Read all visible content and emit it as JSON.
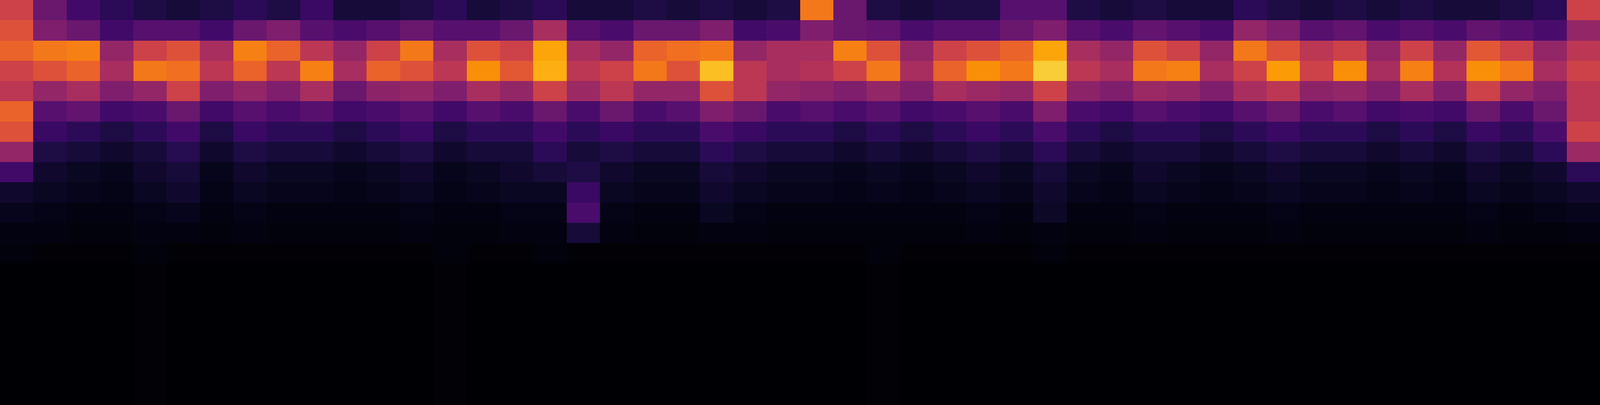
{
  "chart_data": {
    "type": "heatmap",
    "color": "inferno",
    "tick_labels": false,
    "zlim": [
      0,
      100
    ],
    "z": [
      [
        55,
        30,
        20,
        15,
        12,
        10,
        12,
        15,
        12,
        18,
        10,
        10,
        12,
        15,
        10,
        12,
        15,
        10,
        10,
        12,
        10,
        12,
        10,
        12,
        70,
        30,
        12,
        10,
        12,
        12,
        25,
        25,
        12,
        10,
        12,
        10,
        10,
        15,
        12,
        10,
        12,
        10,
        12,
        10,
        10,
        12,
        15,
        55
      ],
      [
        60,
        35,
        30,
        20,
        25,
        25,
        20,
        30,
        35,
        25,
        22,
        25,
        30,
        25,
        25,
        30,
        45,
        25,
        22,
        30,
        30,
        35,
        20,
        22,
        35,
        30,
        28,
        22,
        25,
        25,
        30,
        35,
        25,
        22,
        28,
        25,
        22,
        40,
        35,
        25,
        28,
        22,
        25,
        22,
        28,
        25,
        22,
        40
      ],
      [
        65,
        70,
        72,
        40,
        55,
        60,
        45,
        72,
        65,
        50,
        40,
        55,
        70,
        45,
        60,
        55,
        80,
        45,
        40,
        65,
        68,
        70,
        40,
        45,
        45,
        72,
        60,
        40,
        55,
        60,
        65,
        80,
        45,
        40,
        60,
        55,
        40,
        70,
        60,
        50,
        55,
        40,
        55,
        40,
        62,
        55,
        40,
        50
      ],
      [
        55,
        60,
        65,
        45,
        70,
        68,
        50,
        65,
        50,
        72,
        45,
        65,
        60,
        50,
        75,
        62,
        82,
        50,
        55,
        70,
        60,
        85,
        50,
        45,
        48,
        55,
        70,
        45,
        65,
        75,
        70,
        88,
        50,
        45,
        70,
        72,
        45,
        55,
        78,
        55,
        75,
        45,
        72,
        48,
        75,
        70,
        45,
        55
      ],
      [
        50,
        40,
        45,
        35,
        40,
        55,
        35,
        40,
        35,
        45,
        30,
        38,
        40,
        35,
        45,
        40,
        55,
        42,
        50,
        40,
        40,
        60,
        50,
        40,
        38,
        35,
        40,
        35,
        45,
        42,
        40,
        55,
        38,
        35,
        42,
        40,
        35,
        45,
        50,
        38,
        40,
        35,
        45,
        35,
        55,
        40,
        35,
        50
      ],
      [
        65,
        25,
        28,
        20,
        22,
        30,
        20,
        25,
        22,
        25,
        20,
        22,
        25,
        20,
        25,
        22,
        30,
        22,
        30,
        22,
        25,
        35,
        30,
        22,
        25,
        22,
        25,
        20,
        22,
        25,
        22,
        35,
        22,
        20,
        25,
        22,
        20,
        25,
        30,
        22,
        25,
        20,
        22,
        20,
        30,
        22,
        30,
        50
      ],
      [
        60,
        18,
        15,
        12,
        15,
        20,
        12,
        18,
        15,
        15,
        12,
        15,
        18,
        12,
        15,
        15,
        20,
        15,
        18,
        15,
        15,
        22,
        18,
        15,
        15,
        12,
        15,
        12,
        15,
        18,
        15,
        22,
        15,
        12,
        15,
        15,
        12,
        15,
        18,
        15,
        15,
        12,
        15,
        12,
        18,
        15,
        22,
        55
      ],
      [
        40,
        12,
        10,
        8,
        10,
        14,
        8,
        12,
        10,
        10,
        8,
        10,
        12,
        8,
        10,
        10,
        15,
        10,
        12,
        10,
        10,
        15,
        12,
        10,
        10,
        8,
        10,
        8,
        10,
        12,
        10,
        15,
        10,
        8,
        10,
        10,
        8,
        10,
        12,
        10,
        10,
        8,
        10,
        8,
        12,
        10,
        15,
        42
      ],
      [
        20,
        8,
        6,
        5,
        8,
        10,
        5,
        8,
        6,
        6,
        5,
        6,
        8,
        5,
        6,
        8,
        10,
        12,
        8,
        6,
        6,
        10,
        8,
        6,
        6,
        5,
        6,
        5,
        6,
        8,
        6,
        10,
        6,
        5,
        8,
        6,
        5,
        6,
        8,
        6,
        6,
        5,
        6,
        5,
        8,
        6,
        8,
        15
      ],
      [
        8,
        6,
        5,
        4,
        6,
        8,
        4,
        6,
        5,
        5,
        4,
        5,
        6,
        4,
        5,
        6,
        6,
        18,
        6,
        5,
        5,
        8,
        6,
        5,
        5,
        4,
        5,
        4,
        5,
        6,
        5,
        8,
        5,
        4,
        6,
        5,
        4,
        5,
        6,
        5,
        5,
        4,
        5,
        4,
        6,
        5,
        6,
        8
      ],
      [
        5,
        4,
        3,
        3,
        4,
        5,
        3,
        4,
        3,
        3,
        3,
        3,
        4,
        3,
        3,
        4,
        4,
        22,
        4,
        3,
        3,
        6,
        4,
        3,
        3,
        3,
        3,
        3,
        3,
        4,
        3,
        7,
        3,
        3,
        4,
        3,
        3,
        3,
        4,
        3,
        3,
        3,
        3,
        3,
        4,
        3,
        4,
        5
      ],
      [
        3,
        3,
        2,
        2,
        3,
        3,
        2,
        3,
        2,
        2,
        2,
        2,
        3,
        2,
        2,
        3,
        3,
        10,
        3,
        2,
        2,
        3,
        3,
        2,
        2,
        2,
        2,
        2,
        2,
        3,
        2,
        3,
        2,
        2,
        3,
        2,
        2,
        2,
        3,
        2,
        2,
        2,
        2,
        2,
        3,
        2,
        2,
        3
      ],
      [
        2,
        1,
        1,
        1,
        2,
        1,
        1,
        1,
        1,
        1,
        1,
        1,
        1,
        2,
        1,
        1,
        2,
        1,
        1,
        1,
        1,
        1,
        1,
        1,
        1,
        1,
        2,
        1,
        1,
        1,
        1,
        2,
        1,
        1,
        1,
        1,
        1,
        1,
        1,
        1,
        1,
        1,
        1,
        1,
        1,
        1,
        1,
        1
      ],
      [
        0,
        0,
        0,
        0,
        1,
        0,
        0,
        0,
        0,
        0,
        0,
        0,
        0,
        1,
        0,
        0,
        0,
        0,
        0,
        0,
        0,
        0,
        0,
        0,
        0,
        0,
        1,
        0,
        0,
        0,
        0,
        0,
        0,
        0,
        0,
        0,
        0,
        0,
        0,
        0,
        0,
        0,
        0,
        0,
        0,
        0,
        0,
        0
      ],
      [
        0,
        0,
        0,
        0,
        1,
        0,
        0,
        0,
        0,
        0,
        0,
        0,
        0,
        1,
        0,
        0,
        0,
        0,
        0,
        0,
        0,
        0,
        0,
        0,
        0,
        0,
        1,
        0,
        0,
        0,
        0,
        0,
        0,
        0,
        0,
        0,
        0,
        0,
        0,
        0,
        0,
        0,
        0,
        0,
        0,
        0,
        0,
        0
      ],
      [
        0,
        0,
        0,
        0,
        1,
        0,
        0,
        0,
        0,
        0,
        0,
        0,
        0,
        1,
        0,
        0,
        0,
        0,
        0,
        0,
        0,
        0,
        0,
        0,
        0,
        0,
        1,
        0,
        0,
        0,
        0,
        0,
        0,
        0,
        0,
        0,
        0,
        0,
        0,
        0,
        0,
        0,
        0,
        0,
        0,
        0,
        0,
        0
      ],
      [
        0,
        0,
        0,
        0,
        1,
        0,
        0,
        0,
        0,
        0,
        0,
        0,
        0,
        1,
        0,
        0,
        0,
        0,
        0,
        0,
        0,
        0,
        0,
        0,
        0,
        0,
        1,
        0,
        0,
        0,
        0,
        0,
        0,
        0,
        0,
        0,
        0,
        0,
        0,
        0,
        0,
        0,
        0,
        0,
        0,
        0,
        0,
        0
      ],
      [
        0,
        0,
        0,
        0,
        1,
        0,
        0,
        0,
        0,
        0,
        0,
        0,
        0,
        1,
        0,
        0,
        0,
        0,
        0,
        0,
        0,
        0,
        0,
        0,
        0,
        0,
        1,
        0,
        0,
        0,
        0,
        0,
        0,
        0,
        0,
        0,
        0,
        0,
        0,
        0,
        0,
        0,
        0,
        0,
        0,
        0,
        0,
        0
      ],
      [
        0,
        0,
        0,
        0,
        1,
        0,
        0,
        0,
        0,
        0,
        0,
        0,
        0,
        1,
        0,
        0,
        0,
        0,
        0,
        0,
        0,
        0,
        0,
        0,
        0,
        0,
        1,
        0,
        0,
        0,
        0,
        0,
        0,
        0,
        0,
        0,
        0,
        0,
        0,
        0,
        0,
        0,
        0,
        0,
        0,
        0,
        0,
        0
      ],
      [
        0,
        0,
        0,
        0,
        1,
        0,
        0,
        0,
        0,
        0,
        0,
        0,
        0,
        1,
        0,
        0,
        0,
        0,
        0,
        0,
        0,
        0,
        0,
        0,
        0,
        0,
        1,
        0,
        0,
        0,
        0,
        0,
        0,
        0,
        0,
        0,
        0,
        0,
        0,
        0,
        0,
        0,
        0,
        0,
        0,
        0,
        0,
        0
      ]
    ]
  }
}
